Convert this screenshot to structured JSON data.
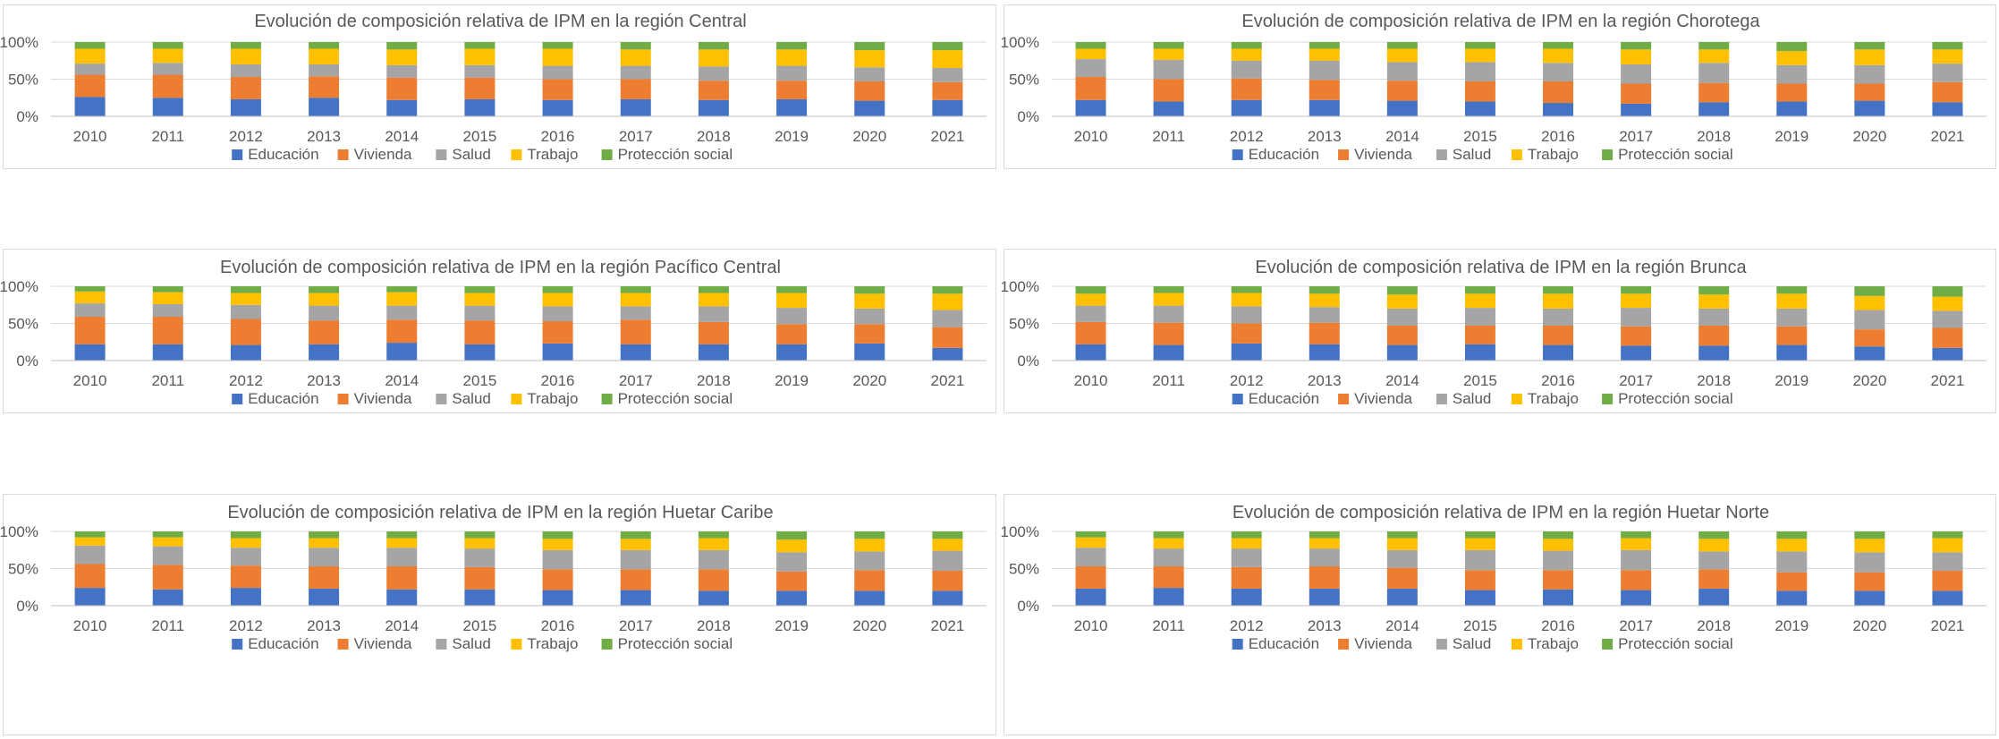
{
  "colors": {
    "Educación": "#4472C4",
    "Vivienda": "#ED7D31",
    "Salud": "#A5A5A5",
    "Trabajo": "#FFC000",
    "Protección social": "#70AD47",
    "grid": "#d9d9d9",
    "axis": "#bfbfbf",
    "text": "#595959"
  },
  "chart_data": [
    {
      "type": "bar",
      "stacked": true,
      "title": "Evolución de composición relativa de IPM en la región Central",
      "categories": [
        "2010",
        "2011",
        "2012",
        "2013",
        "2014",
        "2015",
        "2016",
        "2017",
        "2018",
        "2019",
        "2020",
        "2021"
      ],
      "ylim": [
        0,
        100
      ],
      "yticks": [
        "0%",
        "50%",
        "100%"
      ],
      "legend_position": "bottom",
      "series": [
        {
          "name": "Educación",
          "values": [
            26,
            25,
            23,
            25,
            22,
            23,
            22,
            23,
            22,
            23,
            21,
            22
          ]
        },
        {
          "name": "Vivienda",
          "values": [
            30,
            31,
            30,
            29,
            30,
            29,
            28,
            27,
            26,
            25,
            26,
            24
          ]
        },
        {
          "name": "Salud",
          "values": [
            15,
            16,
            17,
            16,
            17,
            17,
            18,
            18,
            19,
            20,
            19,
            19
          ]
        },
        {
          "name": "Trabajo",
          "values": [
            20,
            19,
            21,
            21,
            21,
            22,
            23,
            22,
            23,
            22,
            23,
            24
          ]
        },
        {
          "name": "Protección social",
          "values": [
            9,
            9,
            9,
            9,
            10,
            9,
            9,
            10,
            10,
            10,
            11,
            11
          ]
        }
      ]
    },
    {
      "type": "bar",
      "stacked": true,
      "title": "Evolución de composición relativa de IPM en la región Chorotega",
      "categories": [
        "2010",
        "2011",
        "2012",
        "2013",
        "2014",
        "2015",
        "2016",
        "2017",
        "2018",
        "2019",
        "2020",
        "2021"
      ],
      "ylim": [
        0,
        100
      ],
      "yticks": [
        "0%",
        "50%",
        "100%"
      ],
      "legend_position": "bottom",
      "series": [
        {
          "name": "Educación",
          "values": [
            22,
            20,
            22,
            22,
            21,
            20,
            18,
            17,
            19,
            20,
            21,
            19
          ]
        },
        {
          "name": "Vivienda",
          "values": [
            31,
            30,
            29,
            27,
            27,
            27,
            29,
            27,
            26,
            24,
            23,
            27
          ]
        },
        {
          "name": "Salud",
          "values": [
            24,
            26,
            24,
            26,
            25,
            26,
            25,
            26,
            27,
            25,
            25,
            25
          ]
        },
        {
          "name": "Trabajo",
          "values": [
            14,
            15,
            16,
            16,
            18,
            18,
            19,
            20,
            18,
            19,
            21,
            19
          ]
        },
        {
          "name": "Protección social",
          "values": [
            9,
            9,
            9,
            9,
            9,
            9,
            9,
            10,
            10,
            12,
            10,
            10
          ]
        }
      ]
    },
    {
      "type": "bar",
      "stacked": true,
      "title": "Evolución de composición relativa de IPM en la región Pacífico Central",
      "categories": [
        "2010",
        "2011",
        "2012",
        "2013",
        "2014",
        "2015",
        "2016",
        "2017",
        "2018",
        "2019",
        "2020",
        "2021"
      ],
      "ylim": [
        0,
        100
      ],
      "yticks": [
        "0%",
        "50%",
        "100%"
      ],
      "legend_position": "bottom",
      "series": [
        {
          "name": "Educación",
          "values": [
            22,
            22,
            21,
            22,
            24,
            22,
            23,
            22,
            22,
            22,
            23,
            17
          ]
        },
        {
          "name": "Vivienda",
          "values": [
            37,
            37,
            35,
            32,
            31,
            32,
            30,
            33,
            30,
            27,
            26,
            28
          ]
        },
        {
          "name": "Salud",
          "values": [
            18,
            17,
            19,
            20,
            19,
            20,
            20,
            18,
            21,
            22,
            21,
            23
          ]
        },
        {
          "name": "Trabajo",
          "values": [
            16,
            16,
            16,
            17,
            18,
            17,
            18,
            18,
            18,
            20,
            20,
            22
          ]
        },
        {
          "name": "Protección social",
          "values": [
            7,
            8,
            9,
            9,
            8,
            9,
            9,
            9,
            9,
            9,
            10,
            10
          ]
        }
      ]
    },
    {
      "type": "bar",
      "stacked": true,
      "title": "Evolución de composición relativa de IPM en la región Brunca",
      "categories": [
        "2010",
        "2011",
        "2012",
        "2013",
        "2014",
        "2015",
        "2016",
        "2017",
        "2018",
        "2019",
        "2020",
        "2021"
      ],
      "ylim": [
        0,
        100
      ],
      "yticks": [
        "0%",
        "50%",
        "100%"
      ],
      "legend_position": "bottom",
      "series": [
        {
          "name": "Educación",
          "values": [
            22,
            21,
            23,
            22,
            21,
            22,
            21,
            20,
            20,
            21,
            19,
            17
          ]
        },
        {
          "name": "Vivienda",
          "values": [
            30,
            30,
            27,
            29,
            26,
            25,
            26,
            26,
            27,
            25,
            23,
            27
          ]
        },
        {
          "name": "Salud",
          "values": [
            22,
            23,
            23,
            21,
            23,
            24,
            23,
            25,
            23,
            24,
            26,
            23
          ]
        },
        {
          "name": "Trabajo",
          "values": [
            16,
            17,
            18,
            18,
            19,
            19,
            20,
            19,
            19,
            20,
            19,
            19
          ]
        },
        {
          "name": "Protección social",
          "values": [
            10,
            9,
            9,
            10,
            11,
            10,
            10,
            10,
            11,
            10,
            13,
            14
          ]
        }
      ]
    },
    {
      "type": "bar",
      "stacked": true,
      "title": "Evolución de composición relativa de IPM en la región Huetar Caribe",
      "categories": [
        "2010",
        "2011",
        "2012",
        "2013",
        "2014",
        "2015",
        "2016",
        "2017",
        "2018",
        "2019",
        "2020",
        "2021"
      ],
      "ylim": [
        0,
        100
      ],
      "yticks": [
        "0%",
        "50%",
        "100%"
      ],
      "legend_position": "bottom",
      "series": [
        {
          "name": "Educación",
          "values": [
            24,
            22,
            24,
            23,
            22,
            22,
            21,
            21,
            20,
            20,
            20,
            20
          ]
        },
        {
          "name": "Vivienda",
          "values": [
            32,
            33,
            30,
            30,
            31,
            30,
            28,
            28,
            29,
            26,
            28,
            27
          ]
        },
        {
          "name": "Salud",
          "values": [
            25,
            25,
            24,
            25,
            25,
            25,
            26,
            26,
            26,
            26,
            25,
            27
          ]
        },
        {
          "name": "Trabajo",
          "values": [
            11,
            12,
            13,
            13,
            13,
            14,
            15,
            15,
            16,
            17,
            17,
            16
          ]
        },
        {
          "name": "Protección social",
          "values": [
            8,
            8,
            9,
            9,
            9,
            9,
            10,
            10,
            9,
            11,
            10,
            10
          ]
        }
      ]
    },
    {
      "type": "bar",
      "stacked": true,
      "title": "Evolución de composición relativa de IPM en la región Huetar Norte",
      "categories": [
        "2010",
        "2011",
        "2012",
        "2013",
        "2014",
        "2015",
        "2016",
        "2017",
        "2018",
        "2019",
        "2020",
        "2021"
      ],
      "ylim": [
        0,
        100
      ],
      "yticks": [
        "0%",
        "50%",
        "100%"
      ],
      "legend_position": "bottom",
      "series": [
        {
          "name": "Educación",
          "values": [
            23,
            24,
            23,
            23,
            23,
            21,
            22,
            21,
            23,
            20,
            20,
            20
          ]
        },
        {
          "name": "Vivienda",
          "values": [
            30,
            29,
            29,
            30,
            28,
            27,
            26,
            27,
            26,
            25,
            25,
            27
          ]
        },
        {
          "name": "Salud",
          "values": [
            25,
            24,
            25,
            24,
            24,
            27,
            26,
            27,
            24,
            28,
            27,
            25
          ]
        },
        {
          "name": "Trabajo",
          "values": [
            14,
            14,
            14,
            14,
            16,
            16,
            16,
            16,
            17,
            17,
            18,
            19
          ]
        },
        {
          "name": "Protección social",
          "values": [
            8,
            9,
            9,
            9,
            9,
            9,
            10,
            9,
            10,
            10,
            10,
            9
          ]
        }
      ]
    }
  ]
}
